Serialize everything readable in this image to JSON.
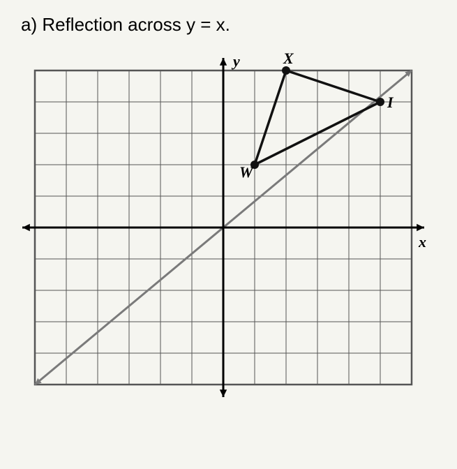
{
  "title": "a)  Reflection across y = x.",
  "axis_labels": {
    "x": "x",
    "y": "y"
  },
  "grid": {
    "cell": 45,
    "x_min": -6,
    "x_max": 6,
    "y_min": -5,
    "y_max": 5,
    "grid_color": "#555555",
    "grid_stroke": 1,
    "border_stroke": 2.5,
    "axis_stroke": 3,
    "background": "#f5f5f0"
  },
  "line_yx": {
    "from": [
      -6,
      -5
    ],
    "to": [
      6,
      5
    ],
    "color": "#7a7a7a",
    "stroke": 3,
    "arrow_size": 10
  },
  "triangle": {
    "vertices": {
      "W": [
        1,
        2
      ],
      "X": [
        2,
        5
      ],
      "I": [
        5,
        4
      ]
    },
    "stroke_color": "#111111",
    "stroke_width": 3.5,
    "point_radius": 6,
    "label_font_size": 22
  },
  "axis_arrow_size": 12,
  "axis_label_font_size": 22
}
